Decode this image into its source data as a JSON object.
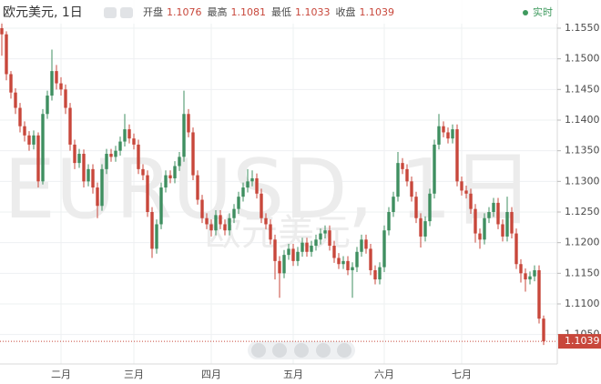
{
  "chart_data": {
    "type": "candlestick",
    "title": "欧元美元, 1日",
    "ohlc_labels": {
      "open": "开盘",
      "high": "最高",
      "low": "最低",
      "close": "收盘"
    },
    "ohlc_values": {
      "open": 1.1076,
      "high": 1.1081,
      "low": 1.1033,
      "close": 1.1039
    },
    "status": "实时",
    "watermark": "EURUSD, 1日",
    "watermark_sub": "欧元美元",
    "up_color": "#3f8f60",
    "down_color": "#c8473b",
    "ylim": [
      1.1002,
      1.1596
    ],
    "yticks": [
      {
        "value": 1.105,
        "label": "1.1050"
      },
      {
        "value": 1.11,
        "label": "1.1100"
      },
      {
        "value": 1.115,
        "label": "1.1150"
      },
      {
        "value": 1.12,
        "label": "1.1200"
      },
      {
        "value": 1.125,
        "label": "1.1250"
      },
      {
        "value": 1.13,
        "label": "1.1300"
      },
      {
        "value": 1.135,
        "label": "1.1350"
      },
      {
        "value": 1.14,
        "label": "1.1400"
      },
      {
        "value": 1.145,
        "label": "1.1450"
      },
      {
        "value": 1.15,
        "label": "1.1500"
      },
      {
        "value": 1.155,
        "label": "1.1550"
      }
    ],
    "xticks": [
      {
        "value": 13,
        "label": "二月"
      },
      {
        "value": 29,
        "label": "三月"
      },
      {
        "value": 46,
        "label": "四月"
      },
      {
        "value": 64,
        "label": "五月"
      },
      {
        "value": 84,
        "label": "六月"
      },
      {
        "value": 101,
        "label": "七月"
      }
    ],
    "grid": true,
    "candles": [
      [
        1.155,
        1.156,
        1.1505,
        1.154
      ],
      [
        1.154,
        1.1545,
        1.1465,
        1.1475
      ],
      [
        1.1475,
        1.148,
        1.1435,
        1.1445
      ],
      [
        1.1445,
        1.1452,
        1.141,
        1.142
      ],
      [
        1.142,
        1.1428,
        1.138,
        1.139
      ],
      [
        1.139,
        1.1398,
        1.1365,
        1.1375
      ],
      [
        1.1375,
        1.1382,
        1.135,
        1.136
      ],
      [
        1.136,
        1.1383,
        1.1352,
        1.1375
      ],
      [
        1.1375,
        1.138,
        1.129,
        1.13
      ],
      [
        1.13,
        1.1418,
        1.1295,
        1.141
      ],
      [
        1.141,
        1.1448,
        1.1402,
        1.144
      ],
      [
        1.144,
        1.1515,
        1.1432,
        1.148
      ],
      [
        1.148,
        1.149,
        1.145,
        1.146
      ],
      [
        1.146,
        1.147,
        1.144,
        1.145
      ],
      [
        1.145,
        1.1458,
        1.141,
        1.142
      ],
      [
        1.142,
        1.1428,
        1.135,
        1.136
      ],
      [
        1.136,
        1.1368,
        1.132,
        1.133
      ],
      [
        1.133,
        1.1353,
        1.1322,
        1.1345
      ],
      [
        1.1345,
        1.1352,
        1.129,
        1.13
      ],
      [
        1.13,
        1.1328,
        1.1292,
        1.132
      ],
      [
        1.132,
        1.1328,
        1.128,
        1.129
      ],
      [
        1.129,
        1.1298,
        1.124,
        1.126
      ],
      [
        1.126,
        1.1328,
        1.1252,
        1.132
      ],
      [
        1.132,
        1.1353,
        1.1312,
        1.1345
      ],
      [
        1.1345,
        1.1353,
        1.1332,
        1.134
      ],
      [
        1.134,
        1.1358,
        1.1332,
        1.135
      ],
      [
        1.135,
        1.1373,
        1.1342,
        1.1365
      ],
      [
        1.1365,
        1.141,
        1.1357,
        1.1385
      ],
      [
        1.1385,
        1.1393,
        1.1362,
        1.137
      ],
      [
        1.137,
        1.1378,
        1.1352,
        1.136
      ],
      [
        1.136,
        1.1368,
        1.1312,
        1.132
      ],
      [
        1.132,
        1.1328,
        1.1302,
        1.131
      ],
      [
        1.131,
        1.1318,
        1.1242,
        1.125
      ],
      [
        1.125,
        1.1258,
        1.1175,
        1.119
      ],
      [
        1.119,
        1.1238,
        1.1182,
        1.123
      ],
      [
        1.123,
        1.1298,
        1.1222,
        1.129
      ],
      [
        1.129,
        1.1318,
        1.1282,
        1.131
      ],
      [
        1.131,
        1.1318,
        1.1297,
        1.1305
      ],
      [
        1.1305,
        1.1333,
        1.1297,
        1.1325
      ],
      [
        1.1325,
        1.1348,
        1.1317,
        1.134
      ],
      [
        1.134,
        1.1448,
        1.1332,
        1.141
      ],
      [
        1.141,
        1.1418,
        1.1372,
        1.138
      ],
      [
        1.138,
        1.1388,
        1.1302,
        1.131
      ],
      [
        1.131,
        1.1318,
        1.1262,
        1.127
      ],
      [
        1.127,
        1.1278,
        1.1232,
        1.124
      ],
      [
        1.124,
        1.1248,
        1.1222,
        1.123
      ],
      [
        1.123,
        1.1238,
        1.121,
        1.122
      ],
      [
        1.122,
        1.1253,
        1.1212,
        1.1245
      ],
      [
        1.1245,
        1.1253,
        1.1222,
        1.123
      ],
      [
        1.123,
        1.1238,
        1.1212,
        1.122
      ],
      [
        1.122,
        1.1248,
        1.1212,
        1.124
      ],
      [
        1.124,
        1.1263,
        1.1232,
        1.1255
      ],
      [
        1.1255,
        1.1283,
        1.1247,
        1.1275
      ],
      [
        1.1275,
        1.1298,
        1.1267,
        1.129
      ],
      [
        1.129,
        1.132,
        1.1282,
        1.13
      ],
      [
        1.13,
        1.1318,
        1.1292,
        1.1305
      ],
      [
        1.1305,
        1.1313,
        1.1272,
        1.128
      ],
      [
        1.128,
        1.1288,
        1.1232,
        1.124
      ],
      [
        1.124,
        1.1248,
        1.1222,
        1.123
      ],
      [
        1.123,
        1.1238,
        1.1197,
        1.1205
      ],
      [
        1.1205,
        1.1213,
        1.114,
        1.117
      ],
      [
        1.117,
        1.1178,
        1.111,
        1.115
      ],
      [
        1.115,
        1.1188,
        1.1142,
        1.118
      ],
      [
        1.118,
        1.1198,
        1.1172,
        1.119
      ],
      [
        1.119,
        1.1198,
        1.1162,
        1.117
      ],
      [
        1.117,
        1.1193,
        1.1162,
        1.1185
      ],
      [
        1.1185,
        1.1208,
        1.1177,
        1.12
      ],
      [
        1.12,
        1.1208,
        1.1177,
        1.1185
      ],
      [
        1.1185,
        1.1203,
        1.1177,
        1.1195
      ],
      [
        1.1195,
        1.1213,
        1.1187,
        1.1205
      ],
      [
        1.1205,
        1.1223,
        1.1197,
        1.1215
      ],
      [
        1.1215,
        1.1228,
        1.1207,
        1.122
      ],
      [
        1.122,
        1.1228,
        1.1187,
        1.1195
      ],
      [
        1.1195,
        1.1203,
        1.1167,
        1.1175
      ],
      [
        1.1175,
        1.1183,
        1.1157,
        1.1165
      ],
      [
        1.1165,
        1.1178,
        1.1157,
        1.117
      ],
      [
        1.117,
        1.1178,
        1.1147,
        1.1155
      ],
      [
        1.1155,
        1.1168,
        1.111,
        1.116
      ],
      [
        1.116,
        1.1193,
        1.1152,
        1.1185
      ],
      [
        1.1185,
        1.1213,
        1.1177,
        1.1205
      ],
      [
        1.1205,
        1.1213,
        1.1182,
        1.119
      ],
      [
        1.119,
        1.1198,
        1.1147,
        1.1155
      ],
      [
        1.1155,
        1.1163,
        1.1132,
        1.114
      ],
      [
        1.114,
        1.1168,
        1.1132,
        1.116
      ],
      [
        1.116,
        1.1228,
        1.1152,
        1.122
      ],
      [
        1.122,
        1.1258,
        1.1212,
        1.125
      ],
      [
        1.125,
        1.1283,
        1.1242,
        1.1275
      ],
      [
        1.1275,
        1.1348,
        1.1267,
        1.133
      ],
      [
        1.133,
        1.1338,
        1.1312,
        1.132
      ],
      [
        1.132,
        1.1328,
        1.1292,
        1.13
      ],
      [
        1.13,
        1.1308,
        1.1267,
        1.1275
      ],
      [
        1.1275,
        1.1283,
        1.1232,
        1.124
      ],
      [
        1.124,
        1.1248,
        1.1192,
        1.121
      ],
      [
        1.121,
        1.1243,
        1.1202,
        1.1235
      ],
      [
        1.1235,
        1.1288,
        1.1227,
        1.128
      ],
      [
        1.128,
        1.1368,
        1.1272,
        1.136
      ],
      [
        1.136,
        1.141,
        1.1352,
        1.139
      ],
      [
        1.139,
        1.1398,
        1.1372,
        1.138
      ],
      [
        1.138,
        1.1388,
        1.1362,
        1.137
      ],
      [
        1.137,
        1.1393,
        1.1362,
        1.1385
      ],
      [
        1.1385,
        1.1393,
        1.1292,
        1.13
      ],
      [
        1.13,
        1.1308,
        1.1277,
        1.1285
      ],
      [
        1.1285,
        1.1293,
        1.1272,
        1.128
      ],
      [
        1.128,
        1.1288,
        1.1247,
        1.1255
      ],
      [
        1.1255,
        1.1263,
        1.12,
        1.1215
      ],
      [
        1.1215,
        1.1223,
        1.119,
        1.1205
      ],
      [
        1.1205,
        1.1248,
        1.1197,
        1.124
      ],
      [
        1.124,
        1.1258,
        1.1232,
        1.125
      ],
      [
        1.125,
        1.1273,
        1.1242,
        1.1265
      ],
      [
        1.1265,
        1.1273,
        1.1222,
        1.123
      ],
      [
        1.123,
        1.1238,
        1.1202,
        1.121
      ],
      [
        1.121,
        1.1275,
        1.1202,
        1.125
      ],
      [
        1.125,
        1.1258,
        1.1207,
        1.1215
      ],
      [
        1.1215,
        1.1223,
        1.1157,
        1.1165
      ],
      [
        1.1165,
        1.1173,
        1.1135,
        1.115
      ],
      [
        1.115,
        1.1158,
        1.112,
        1.114
      ],
      [
        1.114,
        1.1153,
        1.1132,
        1.1145
      ],
      [
        1.1145,
        1.1163,
        1.1137,
        1.1155
      ],
      [
        1.1155,
        1.1163,
        1.1068,
        1.1076
      ],
      [
        1.1076,
        1.1081,
        1.1033,
        1.1039
      ]
    ]
  }
}
